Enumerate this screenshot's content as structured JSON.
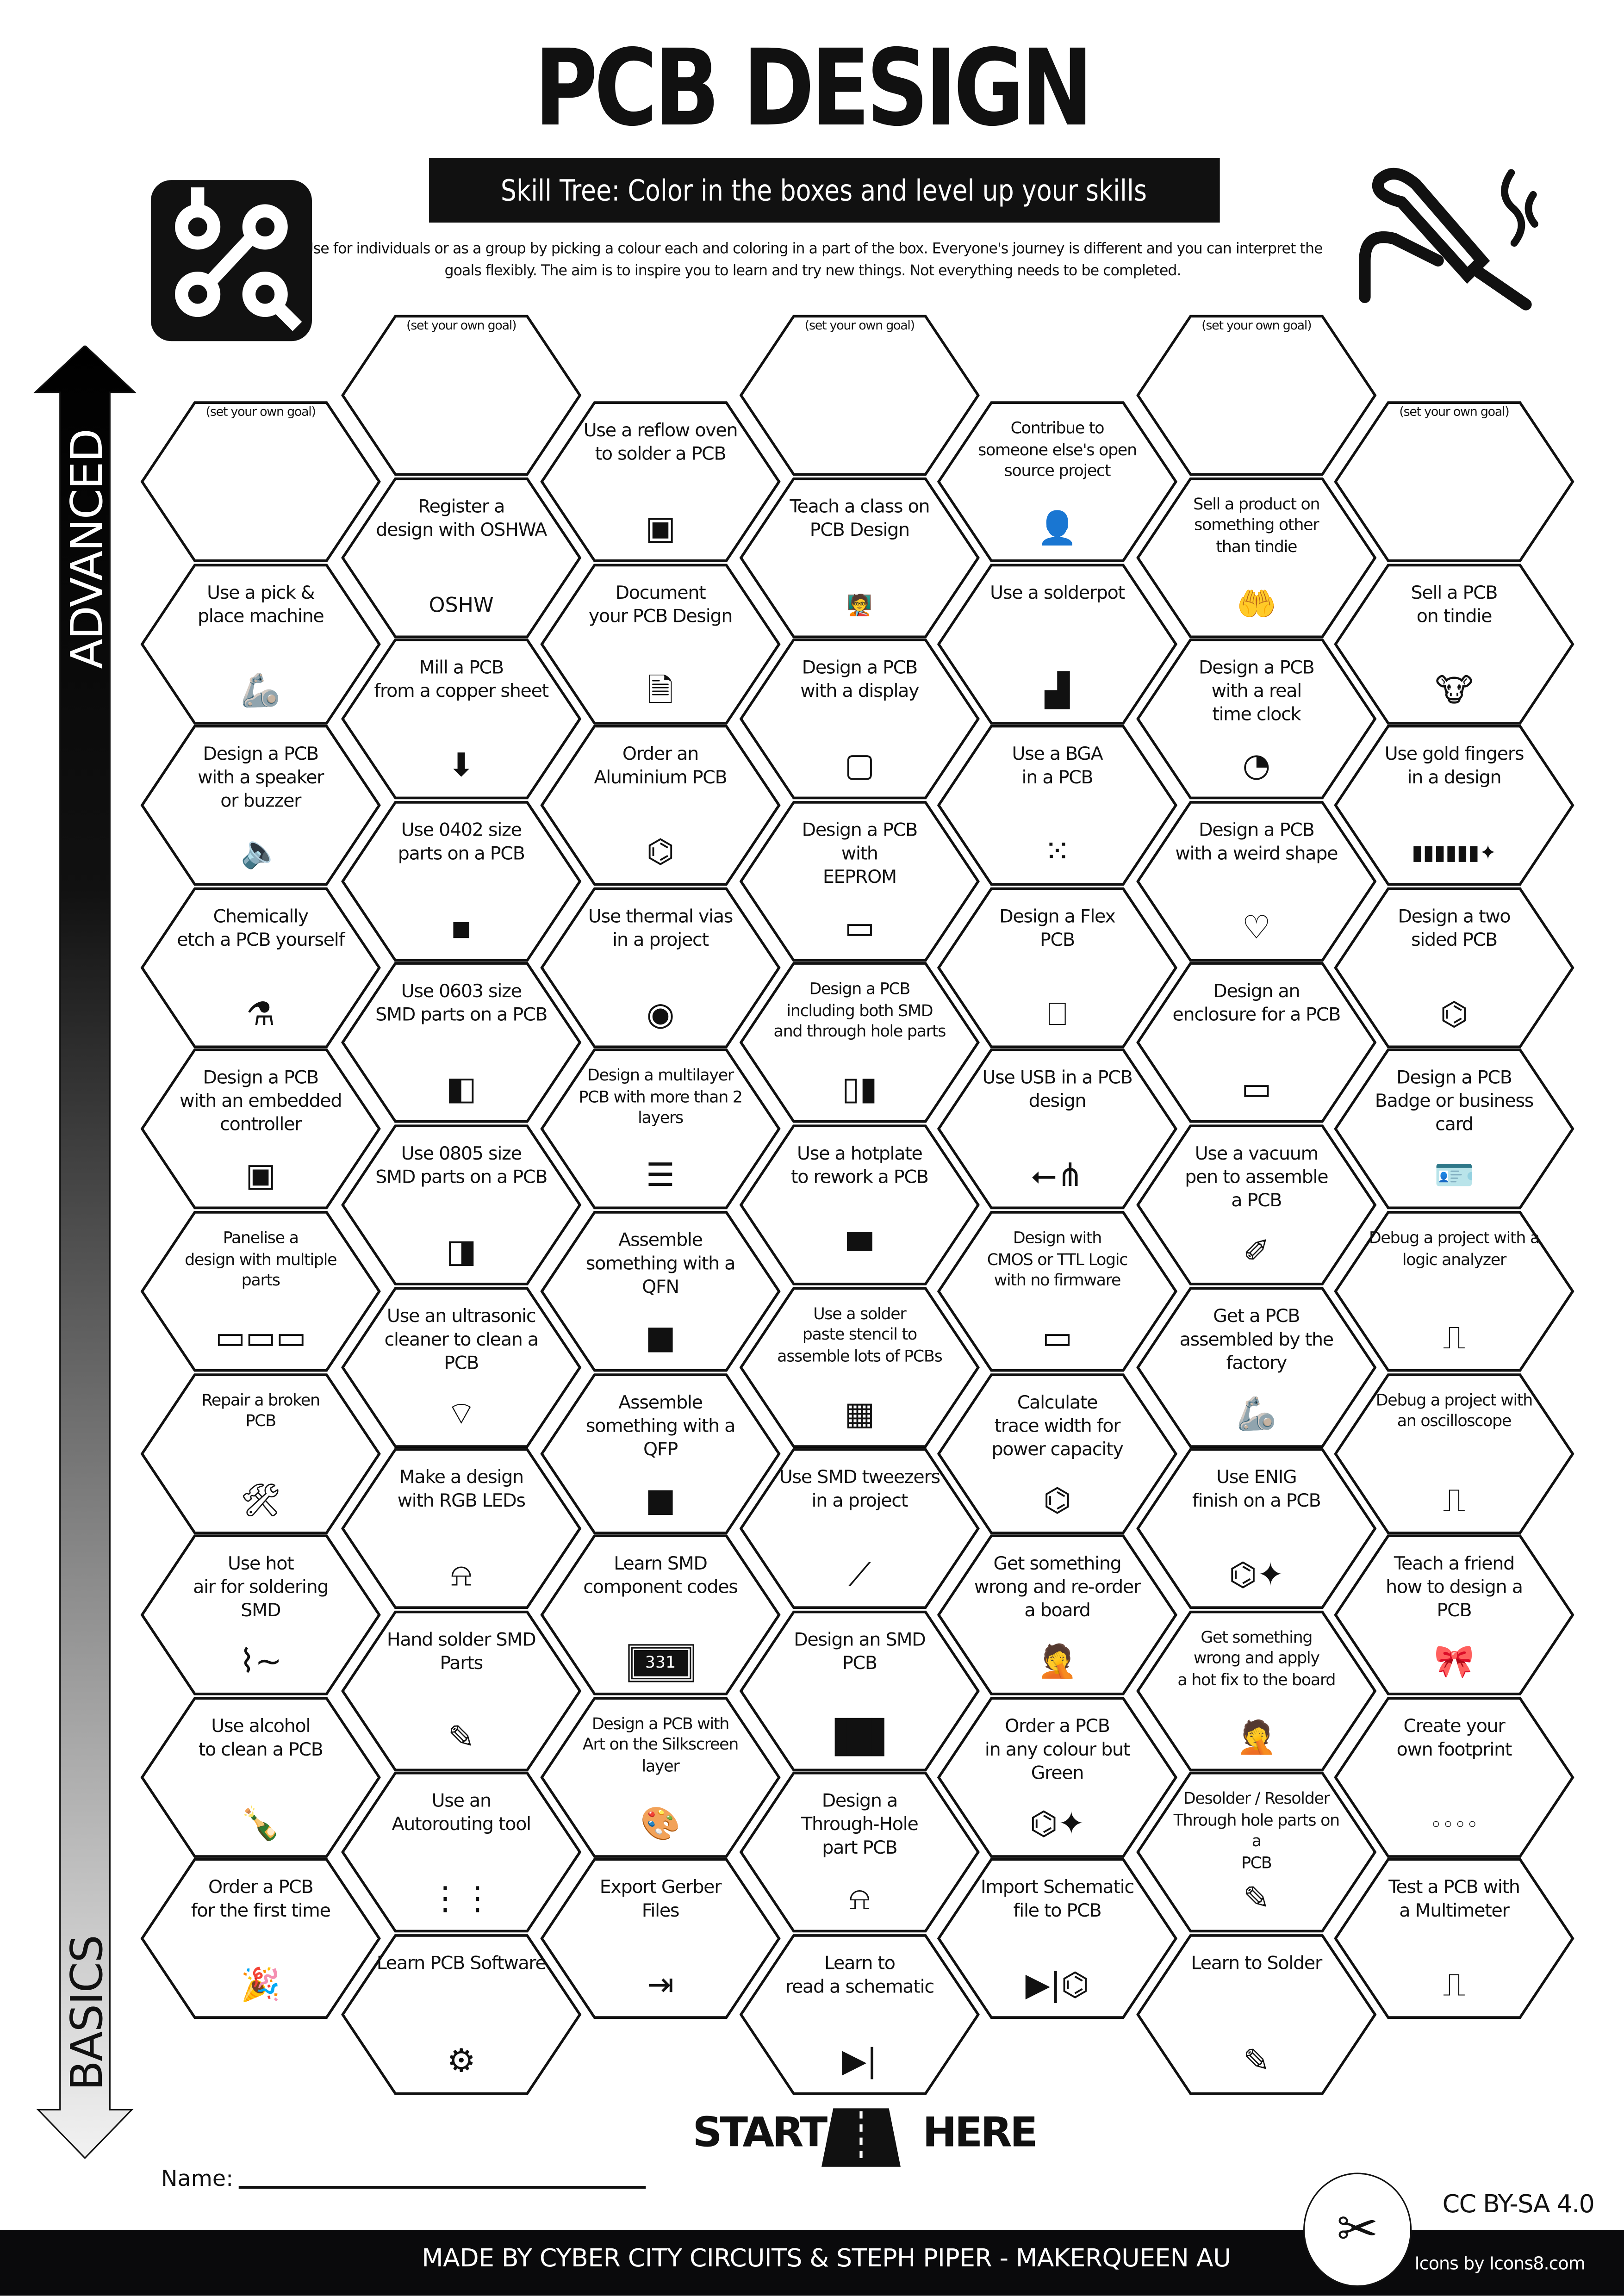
{
  "header": {
    "title": "PCB DESIGN",
    "subtitle": "Skill Tree:  Color in the boxes and level up your skills",
    "description": "Use for individuals or as a group by picking a colour each and coloring in a part of the box.  Everyone's journey is different and you can interpret the goals flexibly.  The aim is to inspire you to learn and try new things. Not everything needs to be completed.",
    "logo_icon": "circuit-icon",
    "right_icon": "soldering-iron-icon"
  },
  "axis": {
    "top_label": "ADVANCED",
    "bottom_label": "BASICS"
  },
  "skills": {
    "columns": [
      {
        "items": [
          {
            "label": "(set your own goal)",
            "icon": "",
            "goal": true
          },
          {
            "label": "Use a pick &\nplace machine",
            "icon": "robot-arm-icon"
          },
          {
            "label": "Design a PCB\nwith a speaker\nor buzzer",
            "icon": "speaker-icon"
          },
          {
            "label": "Chemically\netch a PCB yourself",
            "icon": "flask-icon"
          },
          {
            "label": "Design a PCB\nwith an embedded\ncontroller",
            "icon": "chip-icon"
          },
          {
            "label": "Panelise a\ndesign with multiple\nparts",
            "icon": "panel-icon",
            "small": true
          },
          {
            "label": "Repair a broken\nPCB",
            "icon": "tools-icon",
            "small": true
          },
          {
            "label": "Use hot\nair for soldering\nSMD",
            "icon": "hot-air-icon"
          },
          {
            "label": "Use alcohol\nto clean a PCB",
            "icon": "bottle-icon"
          },
          {
            "label": "Order a PCB\nfor the first time",
            "icon": "party-icon"
          }
        ]
      },
      {
        "items": [
          {
            "label": "(set your own goal)",
            "icon": "",
            "goal": true
          },
          {
            "label": "Register a\ndesign with OSHWA",
            "icon": "oshw-icon"
          },
          {
            "label": "Mill a PCB\nfrom a copper sheet",
            "icon": "mill-icon"
          },
          {
            "label": "Use 0402 size\nparts on a PCB",
            "icon": "resistor-0402-icon"
          },
          {
            "label": "Use 0603 size\nSMD parts on a PCB",
            "icon": "resistor-0603-icon"
          },
          {
            "label": "Use 0805 size\nSMD parts on a PCB",
            "icon": "resistor-0805-icon"
          },
          {
            "label": "Use an ultrasonic\ncleaner to clean a\nPCB",
            "icon": "wifi-waves-icon"
          },
          {
            "label": "Make a design\nwith RGB LEDs",
            "icon": "led-icon"
          },
          {
            "label": "Hand solder SMD\nParts",
            "icon": "soldering-iron-icon"
          },
          {
            "label": "Use an\nAutorouting tool",
            "icon": "routing-icon"
          },
          {
            "label": "Learn PCB Software",
            "icon": "laptop-gear-icon"
          }
        ]
      },
      {
        "items": [
          {
            "label": "Use a reflow oven\nto solder a PCB",
            "icon": "oven-icon"
          },
          {
            "label": "Document\nyour PCB Design",
            "icon": "document-icon"
          },
          {
            "label": "Order an\nAluminium PCB",
            "icon": "circuit-icon"
          },
          {
            "label": "Use thermal vias\nin a project",
            "icon": "via-icon"
          },
          {
            "label": "Design a multilayer\nPCB with more than 2\nlayers",
            "icon": "layers-icon",
            "small": true
          },
          {
            "label": "Assemble\nsomething  with a\nQFN",
            "icon": "qfn-icon"
          },
          {
            "label": "Assemble\nsomething  with a\nQFP",
            "icon": "qfp-icon"
          },
          {
            "label": "Learn SMD\ncomponent codes",
            "icon": "smd-331-icon",
            "code": "331"
          },
          {
            "label": "Design a PCB with\nArt on the Silkscreen\nlayer",
            "icon": "palette-icon",
            "small": true
          },
          {
            "label": "Export Gerber\nFiles",
            "icon": "export-icon"
          }
        ]
      },
      {
        "items": [
          {
            "label": "(set your own goal)",
            "icon": "",
            "goal": true
          },
          {
            "label": "Teach a class on\nPCB Design",
            "icon": "teacher-icon"
          },
          {
            "label": "Design a PCB\nwith a display",
            "icon": "display-icon"
          },
          {
            "label": "Design a PCB\nwith\nEEPROM",
            "icon": "eeprom-icon"
          },
          {
            "label": "Design a PCB\nincluding both SMD\nand through hole parts",
            "icon": "dip-chips-icon",
            "small": true
          },
          {
            "label": "Use a hotplate\nto rework a PCB",
            "icon": "hotplate-icon"
          },
          {
            "label": "Use a solder\npaste stencil to\nassemble lots of PCBs",
            "icon": "stencil-icon",
            "small": true
          },
          {
            "label": "Use SMD tweezers\nin a project",
            "icon": "tweezers-icon"
          },
          {
            "label": "Design an SMD\nPCB",
            "icon": "smd-resistor-icon"
          },
          {
            "label": "Design a\nThrough-Hole\npart PCB",
            "icon": "led-icon"
          },
          {
            "label": "Learn to\nread a schematic",
            "icon": "diode-icon"
          }
        ]
      },
      {
        "items": [
          {
            "label": "Contribue to\nsomeone else's open\nsource project",
            "icon": "person-laptop-icon",
            "small": true
          },
          {
            "label": "Use a solderpot",
            "icon": "solderpot-icon"
          },
          {
            "label": "Use a BGA\nin a PCB",
            "icon": "bga-icon"
          },
          {
            "label": "Design a Flex\nPCB",
            "icon": "flex-pcb-icon"
          },
          {
            "label": "Use USB in a PCB\ndesign",
            "icon": "usb-icon"
          },
          {
            "label": "Design with\nCMOS or TTL Logic\nwith no firmware",
            "icon": "logic-chip-icon",
            "small": true
          },
          {
            "label": "Calculate\ntrace width for\npower capacity",
            "icon": "circuit-icon"
          },
          {
            "label": "Get something\nwrong and re-order\na board",
            "icon": "facepalm-icon"
          },
          {
            "label": "Order a PCB\nin any colour but\nGreen",
            "icon": "circuit-sparkle-icon"
          },
          {
            "label": "Import Schematic\nfile to PCB",
            "icon": "diode-circuit-icon"
          }
        ]
      },
      {
        "items": [
          {
            "label": "(set your own goal)",
            "icon": "",
            "goal": true
          },
          {
            "label": "Sell a product on\nsomething other\nthan tindie",
            "icon": "hand-product-icon",
            "small": true
          },
          {
            "label": "Design a PCB\nwith a real\ntime clock",
            "icon": "clock-icon"
          },
          {
            "label": "Design a PCB\nwith a weird shape",
            "icon": "heart-icon"
          },
          {
            "label": "Design an\nenclosure for a PCB",
            "icon": "enclosure-icon"
          },
          {
            "label": "Use a vacuum\npen to assemble\na PCB",
            "icon": "vacuum-pen-icon"
          },
          {
            "label": "Get a PCB\nassembled by the\nfactory",
            "icon": "robot-arm-icon"
          },
          {
            "label": "Use ENIG\nfinish on a PCB",
            "icon": "circuit-sparkle-icon"
          },
          {
            "label": "Get something\nwrong and apply\na hot fix to the board",
            "icon": "facepalm-icon",
            "small": true
          },
          {
            "label": "Desolder / Resolder\nThrough hole parts on a\nPCB",
            "icon": "desolder-icon",
            "small": true
          },
          {
            "label": "Learn to Solder",
            "icon": "soldering-iron-icon"
          }
        ]
      },
      {
        "items": [
          {
            "label": "(set your own goal)",
            "icon": "",
            "goal": true
          },
          {
            "label": "Sell a PCB\non tindie",
            "icon": "tindie-icon"
          },
          {
            "label": "Use gold fingers\nin a design",
            "icon": "gold-fingers-icon"
          },
          {
            "label": "Design a two\nsided PCB",
            "icon": "circuit-icon"
          },
          {
            "label": "Design a PCB\nBadge or business\ncard",
            "icon": "badge-icon"
          },
          {
            "label": "Debug a project with a\nlogic analyzer",
            "icon": "multimeter-icon",
            "small": true
          },
          {
            "label": "Debug a project with\nan oscilloscope",
            "icon": "oscilloscope-icon",
            "small": true
          },
          {
            "label": "Teach a friend\nhow to design a\nPCB",
            "icon": "gift-bow-icon"
          },
          {
            "label": "Create your\nown footprint",
            "icon": "footprint-icon"
          },
          {
            "label": "Test a PCB with\na Multimeter",
            "icon": "multimeter-icon"
          }
        ]
      }
    ]
  },
  "start": {
    "left": "START",
    "right": "HERE",
    "icon": "road-icon"
  },
  "name_field": {
    "label": "Name:",
    "value": ""
  },
  "footer": {
    "credit": "MADE BY CYBER CITY CIRCUITS & STEPH PIPER  -  MAKERQUEEN AU",
    "license": "CC BY-SA 4.0",
    "icons_credit": "Icons by Icons8.com",
    "badge_icon": "makerqueen-logo-icon"
  },
  "colors": {
    "ink": "#111111",
    "background": "#ffffff",
    "footer": "#0a0a0c"
  }
}
